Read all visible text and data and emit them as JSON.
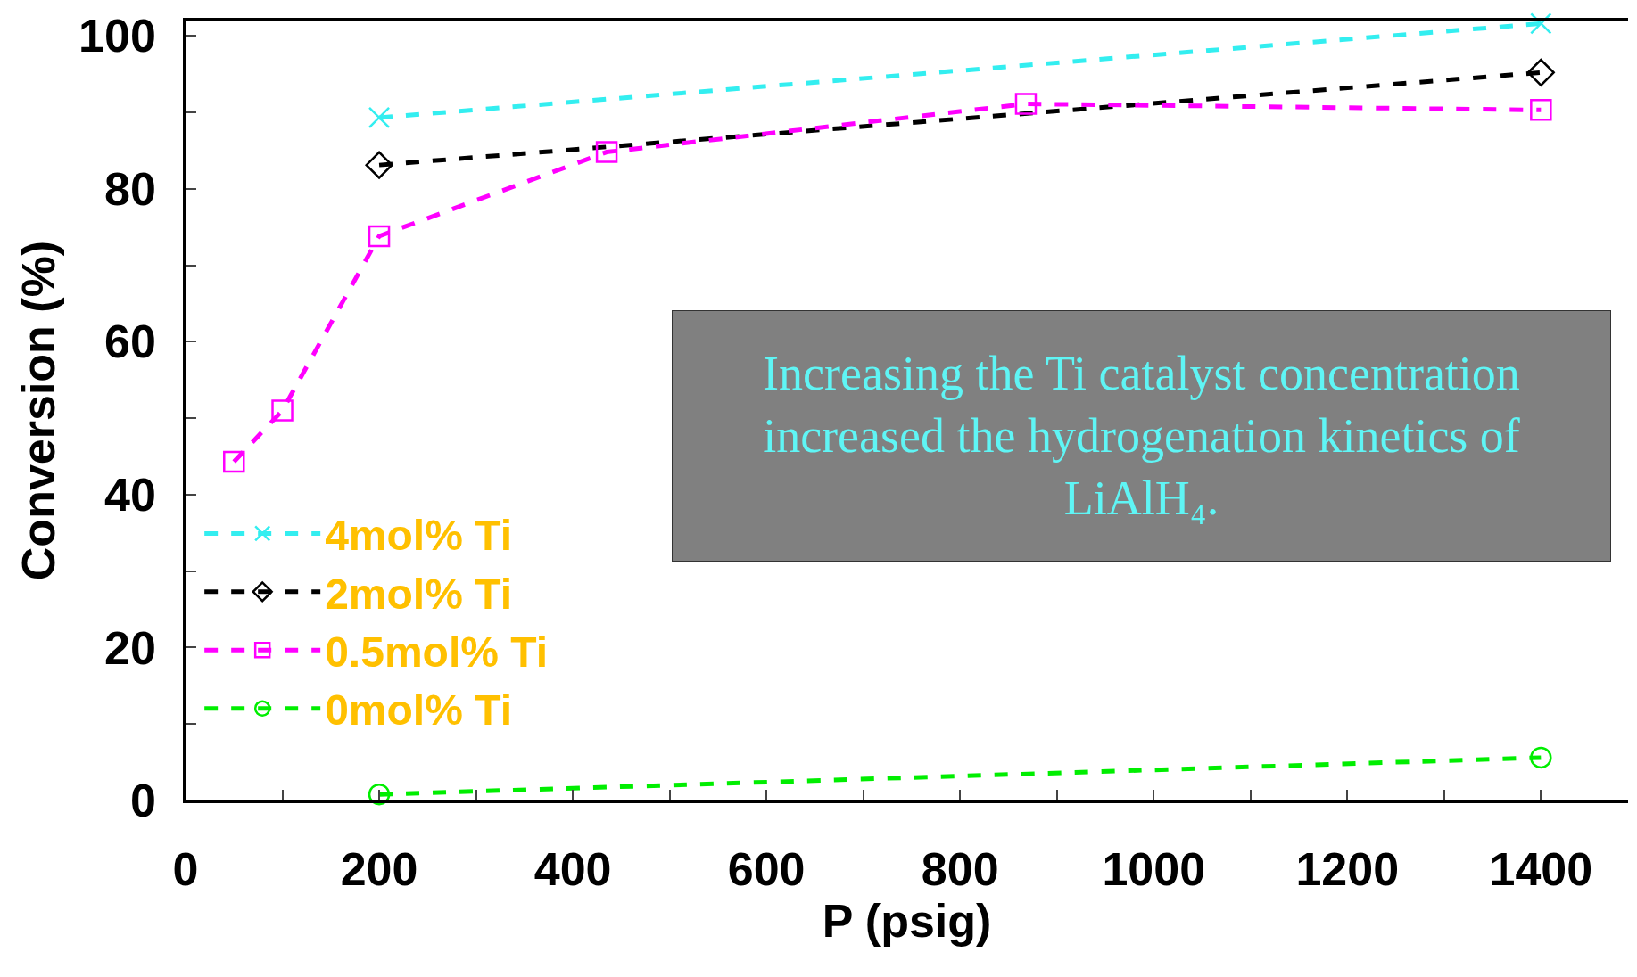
{
  "chart_data": {
    "type": "line",
    "xlabel": "P (psig)",
    "ylabel": "Conversion (%)",
    "annotations": [
      "Increasing the Ti catalyst concentration increased the hydrogenation kinetics of LiAlH₄."
    ],
    "series": [
      {
        "name": "4mol% Ti",
        "color": "#33eef0",
        "marker": "cross",
        "x": [
          200,
          1400
        ],
        "values": [
          89.3,
          101.6
        ]
      },
      {
        "name": "2mol% Ti",
        "color": "#000000",
        "marker": "diamond",
        "x": [
          200,
          1400
        ],
        "values": [
          83.1,
          95.2
        ]
      },
      {
        "name": "0.5mol% Ti",
        "color": "#ff00ff",
        "marker": "square",
        "x": [
          50,
          100,
          200,
          435,
          868,
          1400
        ],
        "values": [
          44.3,
          51.0,
          73.8,
          84.8,
          91.1,
          90.3
        ]
      },
      {
        "name": "0mol% Ti",
        "color": "#00ee00",
        "marker": "circle",
        "x": [
          200,
          1400
        ],
        "values": [
          0.8,
          5.6
        ]
      }
    ],
    "line_style": "dashed",
    "legend": "left",
    "grid": false,
    "xlim": [
      0,
      1490
    ],
    "ylim": [
      0,
      102
    ],
    "xticks": [
      0,
      {
        "value": 100,
        "label": null
      },
      200,
      {
        "value": 300,
        "label": null
      },
      400,
      {
        "value": 500,
        "label": null
      },
      600,
      {
        "value": 700,
        "label": null
      },
      800,
      {
        "value": 900,
        "label": null
      },
      1000,
      {
        "value": 1100,
        "label": null
      },
      1200,
      {
        "value": 1300,
        "label": null
      },
      1400
    ],
    "yticks": [
      0,
      {
        "value": 10,
        "label": null
      },
      20,
      {
        "value": 30,
        "label": null
      },
      40,
      {
        "value": 50,
        "label": null
      },
      60,
      {
        "value": 70,
        "label": null
      },
      80,
      {
        "value": 90,
        "label": null
      },
      100
    ]
  }
}
